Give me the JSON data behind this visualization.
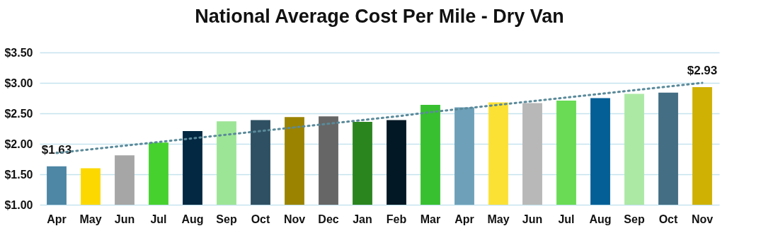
{
  "chart_data": {
    "type": "bar",
    "title": "National Average Cost Per Mile - Dry Van",
    "categories": [
      "Apr",
      "May",
      "Jun",
      "Jul",
      "Aug",
      "Sep",
      "Oct",
      "Nov",
      "Dec",
      "Jan",
      "Feb",
      "Mar",
      "Apr",
      "May",
      "Jun",
      "Jul",
      "Aug",
      "Sep",
      "Oct",
      "Nov"
    ],
    "series": [
      {
        "colors": [
          "#4e86a5",
          "#fcd800",
          "#a6a6a6",
          "#47d12f",
          "#032841",
          "#9de596",
          "#2f5063",
          "#9b8300",
          "#666666",
          "#2b851f",
          "#021824",
          "#38c030",
          "#6ea0b9",
          "#fce135",
          "#b8b8b8",
          "#69db55",
          "#035f96",
          "#ace9a5",
          "#436e84",
          "#cfb103"
        ],
        "values": [
          1.63,
          1.6,
          1.81,
          2.02,
          2.21,
          2.37,
          2.39,
          2.44,
          2.45,
          2.36,
          2.39,
          2.64,
          2.6,
          2.68,
          2.67,
          2.71,
          2.75,
          2.82,
          2.84,
          2.93
        ],
        "value_labels": [
          "$1.63",
          null,
          null,
          null,
          null,
          null,
          null,
          null,
          null,
          null,
          null,
          null,
          null,
          null,
          null,
          null,
          null,
          null,
          null,
          "$2.93"
        ]
      },
      {
        "type": "line",
        "color": "#5a8a9a",
        "line_style": "dotted",
        "values": [
          1.85,
          1.91,
          1.97,
          2.03,
          2.09,
          2.15,
          2.21,
          2.27,
          2.33,
          2.39,
          2.45,
          2.52,
          2.58,
          2.64,
          2.7,
          2.76,
          2.82,
          2.88,
          2.94,
          3.0
        ]
      }
    ],
    "ylim": [
      1,
      3.5
    ],
    "yticks": [
      {
        "value": 1,
        "label": "$1.00"
      },
      {
        "value": 1.5,
        "label": "$1.50"
      },
      {
        "value": 2,
        "label": "$2.00"
      },
      {
        "value": 2.5,
        "label": "$2.50"
      },
      {
        "value": 3,
        "label": "$3.00"
      },
      {
        "value": 3.5,
        "label": "$3.50"
      }
    ],
    "grid": "y"
  }
}
